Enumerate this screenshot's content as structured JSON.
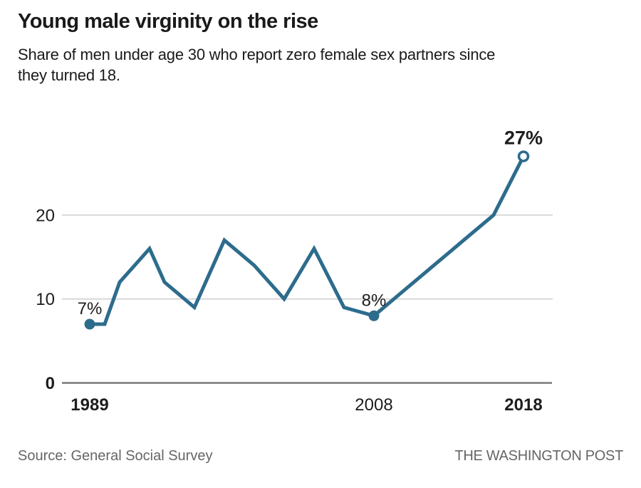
{
  "header": {
    "title": "Young male virginity on the rise",
    "subtitle_lines": [
      "Share of men under age 30 who report zero female sex partners since",
      "they turned 18."
    ]
  },
  "footer": {
    "source": "Source: General Social Survey",
    "credit": "THE WASHINGTON POST"
  },
  "chart_data": {
    "type": "line",
    "title": "Young male virginity on the rise",
    "subtitle": "Share of men under age 30 who report zero female sex partners since they turned 18.",
    "x": [
      1989,
      1990,
      1991,
      1993,
      1994,
      1996,
      1998,
      2000,
      2002,
      2004,
      2006,
      2008,
      2010,
      2012,
      2014,
      2016,
      2018
    ],
    "values": [
      7,
      7,
      12,
      16,
      12,
      9,
      17,
      14,
      10,
      16,
      9,
      8,
      11,
      14,
      17,
      20,
      27
    ],
    "unit": "%",
    "xlim": [
      1989,
      2018
    ],
    "ylim": [
      0,
      28
    ],
    "grid": "horizontal",
    "legend": "none",
    "yticks": [
      {
        "value": 0,
        "label": "0",
        "bold": true
      },
      {
        "value": 10,
        "label": "10",
        "bold": false
      },
      {
        "value": 20,
        "label": "20",
        "bold": false
      }
    ],
    "xticks": [
      {
        "year": 1989,
        "label": "1989",
        "bold": true
      },
      {
        "year": 2008,
        "label": "2008",
        "bold": false
      },
      {
        "year": 2018,
        "label": "2018",
        "bold": true
      }
    ],
    "annotations": [
      {
        "year": 1989,
        "value": 7,
        "label": "7%",
        "bold": false,
        "marker": "filled"
      },
      {
        "year": 2008,
        "value": 8,
        "label": "8%",
        "bold": false,
        "marker": "filled"
      },
      {
        "year": 2018,
        "value": 27,
        "label": "27%",
        "bold": true,
        "marker": "open"
      }
    ],
    "colors": {
      "line": "#2d6c8c",
      "grid": "#d6d6d6",
      "zero_axis": "#7a7a7a",
      "text": "#1d1d1d",
      "muted_text": "#666666",
      "background": "#ffffff"
    }
  }
}
